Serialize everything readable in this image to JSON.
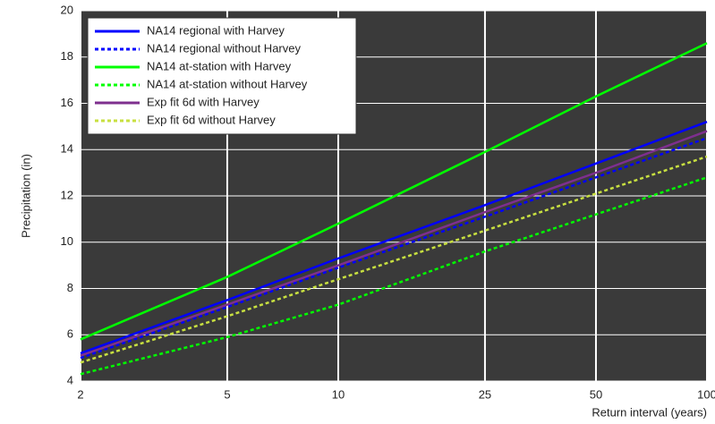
{
  "chart_data": {
    "type": "line",
    "x_label": "Return interval (years)",
    "y_label": "Precipitation (in)",
    "x": [
      2,
      5,
      10,
      25,
      50,
      100
    ],
    "xscale": "log",
    "xlim": [
      2,
      100
    ],
    "xticks": [
      2,
      5,
      10,
      25,
      50,
      100
    ],
    "ylim": [
      4,
      20
    ],
    "yticks": [
      4,
      6,
      8,
      10,
      12,
      14,
      16,
      18,
      20
    ],
    "grid": true,
    "legend": "upper left",
    "series": [
      {
        "name": "NA14 regional with Harvey",
        "color": "#0000ff",
        "dash": "solid",
        "values": [
          5.2,
          7.5,
          9.3,
          11.6,
          13.4,
          15.2
        ]
      },
      {
        "name": "NA14 regional without Harvey",
        "color": "#0000ff",
        "dash": "dotted",
        "values": [
          5.0,
          7.2,
          8.9,
          11.1,
          12.8,
          14.5
        ]
      },
      {
        "name": "NA14 at-station with Harvey",
        "color": "#00ff00",
        "dash": "solid",
        "values": [
          5.8,
          8.5,
          10.8,
          13.9,
          16.3,
          18.6
        ]
      },
      {
        "name": "NA14 at-station without Harvey",
        "color": "#00ff00",
        "dash": "dotted",
        "values": [
          4.3,
          5.9,
          7.3,
          9.6,
          11.2,
          12.8
        ]
      },
      {
        "name": "Exp fit 6d with Harvey",
        "color": "#7e2f8e",
        "dash": "solid",
        "values": [
          5.1,
          7.3,
          9.0,
          11.3,
          13.0,
          14.8
        ]
      },
      {
        "name": "Exp fit 6d without Harvey",
        "color": "#c8e040",
        "dash": "dotted",
        "values": [
          4.8,
          6.8,
          8.4,
          10.5,
          12.1,
          13.7
        ]
      }
    ]
  }
}
